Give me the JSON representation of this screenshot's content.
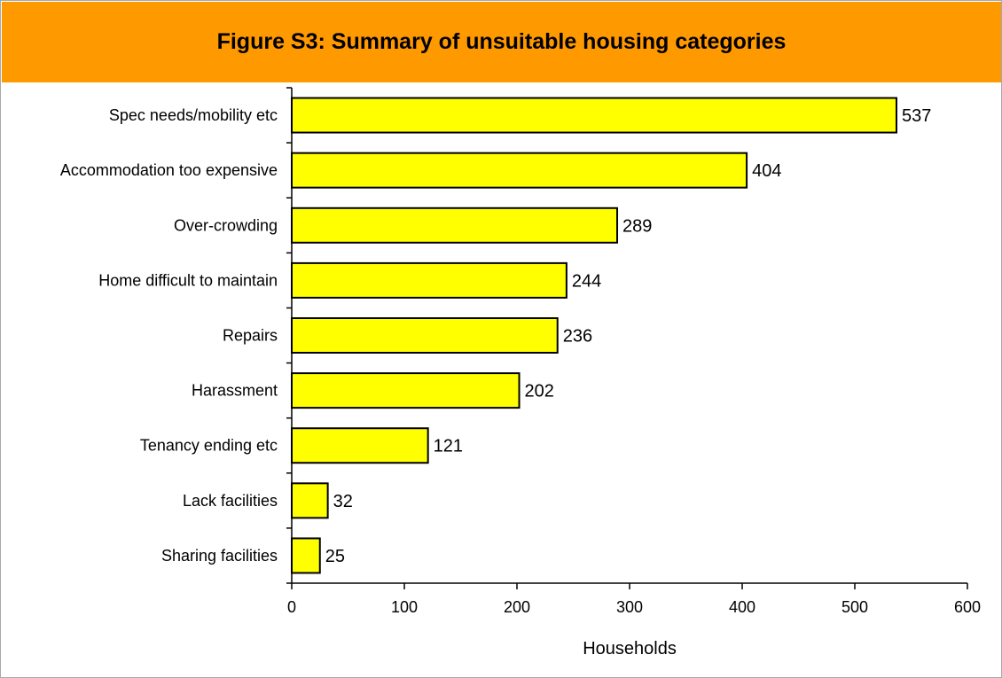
{
  "chart_data": {
    "type": "bar",
    "orientation": "horizontal",
    "title": "Figure S3: Summary of unsuitable housing categories",
    "categories": [
      "Spec needs/mobility etc",
      "Accommodation too expensive",
      "Over-crowding",
      "Home difficult to maintain",
      "Repairs",
      "Harassment",
      "Tenancy ending etc",
      "Lack facilities",
      "Sharing facilities"
    ],
    "values": [
      537,
      404,
      289,
      244,
      236,
      202,
      121,
      32,
      25
    ],
    "data_labels": [
      "537",
      "404",
      "289",
      "244",
      "236",
      "202",
      "121",
      "32",
      "25"
    ],
    "xlabel": "Households",
    "ylabel": "",
    "xlim": [
      0,
      600
    ],
    "x_ticks": [
      0,
      100,
      200,
      300,
      400,
      500,
      600
    ],
    "x_tick_labels": [
      "0",
      "100",
      "200",
      "300",
      "400",
      "500",
      "600"
    ],
    "grid": false,
    "legend": "none",
    "colors": {
      "bar_fill": "#ffff00",
      "bar_stroke": "#000000",
      "title_bar": "#ff9900"
    }
  }
}
